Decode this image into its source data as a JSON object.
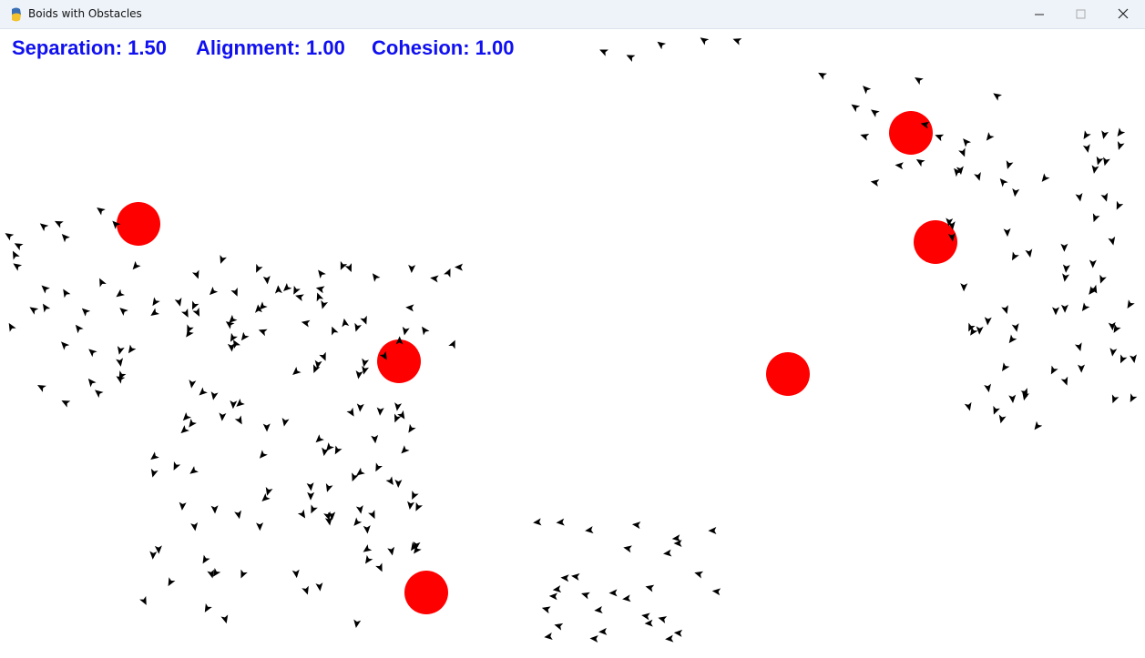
{
  "window": {
    "title": "Boids with Obstacles"
  },
  "hud": {
    "separation": "Separation: 1.50",
    "alignment": "Alignment: 1.00",
    "cohesion": "Cohesion: 1.00"
  }
}
